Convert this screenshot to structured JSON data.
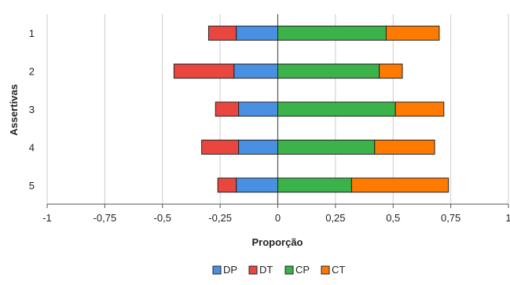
{
  "chart_data": {
    "type": "bar",
    "orientation": "horizontal",
    "stacking": "diverging",
    "title": "",
    "xlabel": "Proporção",
    "ylabel": "Assertivas",
    "xlim": [
      -1,
      1
    ],
    "x_ticks": [
      -1,
      -0.75,
      -0.5,
      -0.25,
      0,
      0.25,
      0.5,
      0.75,
      1
    ],
    "x_tick_labels": [
      "-1",
      "-0,75",
      "-0,5",
      "-0,25",
      "0",
      "0,25",
      "0,5",
      "0,75",
      "1"
    ],
    "categories": [
      "1",
      "2",
      "3",
      "4",
      "5"
    ],
    "grid": "vertical",
    "legend_position": "bottom",
    "series": [
      {
        "name": "DP",
        "side": "negative",
        "color": "#4a90e2",
        "values": [
          0.18,
          0.19,
          0.17,
          0.17,
          0.18
        ]
      },
      {
        "name": "DT",
        "side": "negative",
        "color": "#e8463e",
        "values": [
          0.12,
          0.26,
          0.1,
          0.16,
          0.08
        ]
      },
      {
        "name": "CP",
        "side": "positive",
        "color": "#3bb34a",
        "values": [
          0.47,
          0.44,
          0.51,
          0.42,
          0.32
        ]
      },
      {
        "name": "CT",
        "side": "positive",
        "color": "#ff7a00",
        "values": [
          0.23,
          0.1,
          0.21,
          0.26,
          0.42
        ]
      }
    ]
  }
}
